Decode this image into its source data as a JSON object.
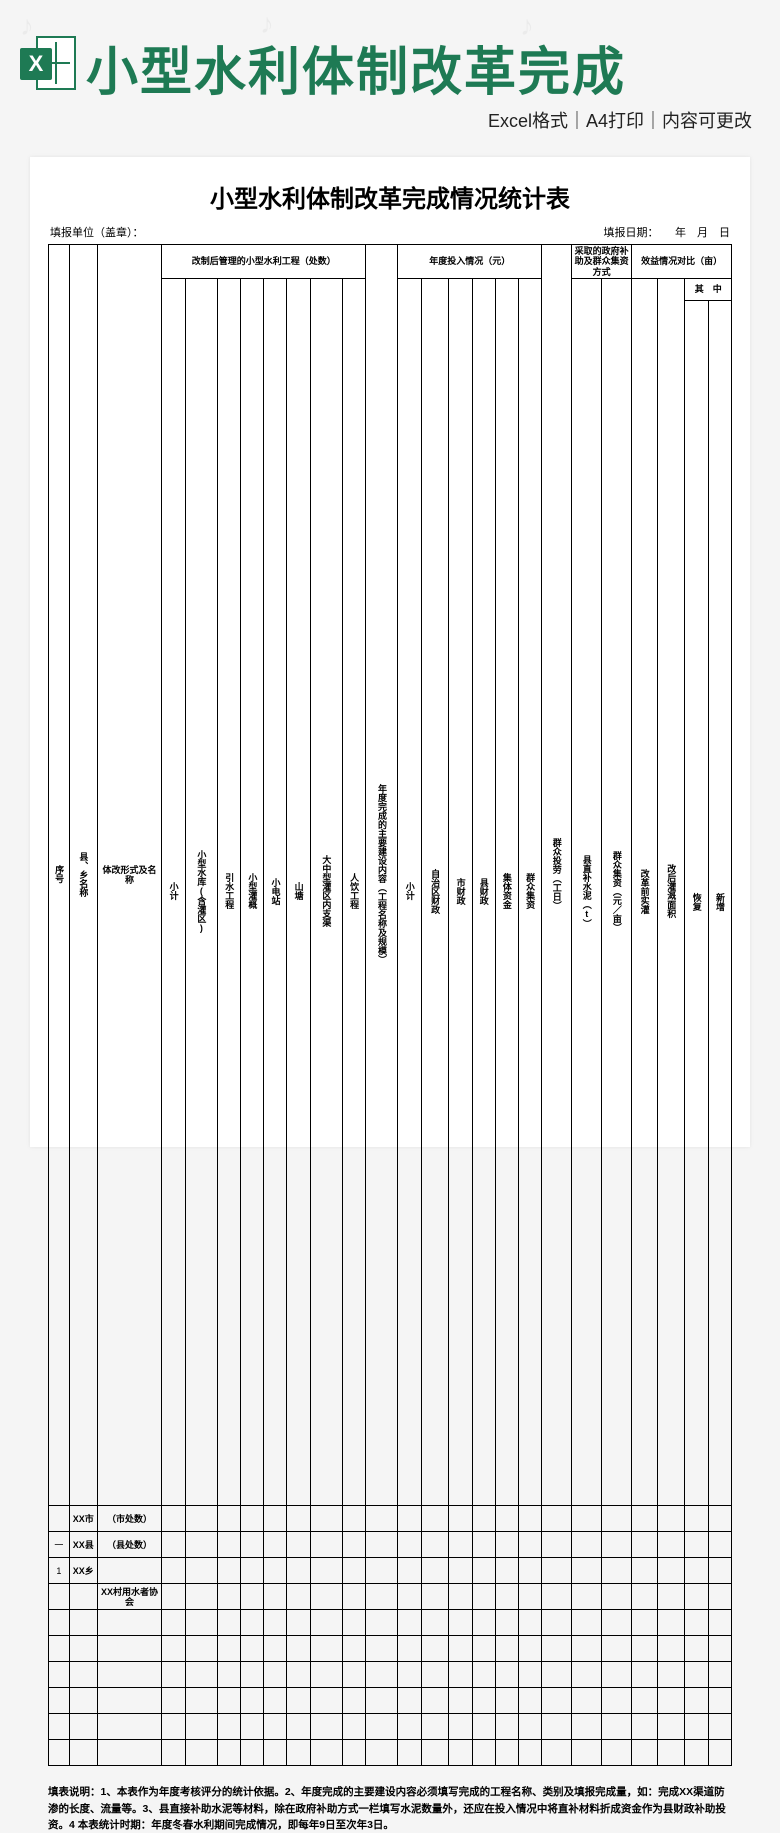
{
  "banner": {
    "title": "小型水利体制改革完成",
    "subtitle": "Excel格式｜A4打印｜内容可更改",
    "icon_letter": "X",
    "icon_color": "#1e7a54"
  },
  "doc": {
    "title": "小型水利体制改革完成情况统计表",
    "meta_left": "填报单位（盖章）：",
    "meta_right": "填报日期：　　年　月　日"
  },
  "columns": {
    "group_a": "改制后管理的小型水利工程（处数）",
    "group_b": "年度投入情况（元）",
    "group_c": "采取的政府补助及群众集资方式",
    "group_d": "效益情况对比（亩）",
    "seq": "序号",
    "county": "县、乡名称",
    "reform": "体改形式及名称",
    "subtotal": "小计",
    "res": "小型水库(含灌区)",
    "divert": "引水工程",
    "irr": "小型灌概",
    "station": "小电站",
    "pond": "山塘",
    "big": "大中型灌区内支渠",
    "human": "人饮工程",
    "year_content": "年度完成的主要建设内容（工程名称及规模）",
    "invest_sub": "小计",
    "zizhi": "自治区财政",
    "city": "市财政",
    "countyf": "县财政",
    "collective": "集体资金",
    "mass": "群众集资",
    "labor": "群众投劳（工日）",
    "cement": "县直补水泥（t）",
    "perMu": "群众集资（元／亩）",
    "pre": "改革前实灌",
    "post": "改后灌溉面积",
    "whichof": "其　中",
    "recover": "恢复",
    "newadd": "新增"
  },
  "rows": [
    {
      "seq": "",
      "name": "XX市",
      "form": "（市处数）"
    },
    {
      "seq": "一",
      "name": "XX县",
      "form": "（县处数）"
    },
    {
      "seq": "1",
      "name": "XX乡",
      "form": ""
    },
    {
      "seq": "",
      "name": "",
      "form": "XX村用水者协会"
    },
    {
      "seq": "",
      "name": "",
      "form": ""
    },
    {
      "seq": "",
      "name": "",
      "form": ""
    },
    {
      "seq": "",
      "name": "",
      "form": ""
    },
    {
      "seq": "",
      "name": "",
      "form": ""
    },
    {
      "seq": "",
      "name": "",
      "form": ""
    },
    {
      "seq": "",
      "name": "",
      "form": ""
    }
  ],
  "notes": "填表说明：1、本表作为年度考核评分的统计依据。2、年度完成的主要建设内容必须填写完成的工程名称、类别及填报完成量，如：完成XX渠道防渗的长度、流量等。3、县直接补助水泥等材料，除在政府补助方式一栏填写水泥数量外，还应在投入情况中将直补材料折成资金作为县财政补助投资。4  本表统计时期：年度冬春水利期间完成情况，即每年9日至次年3日。"
}
